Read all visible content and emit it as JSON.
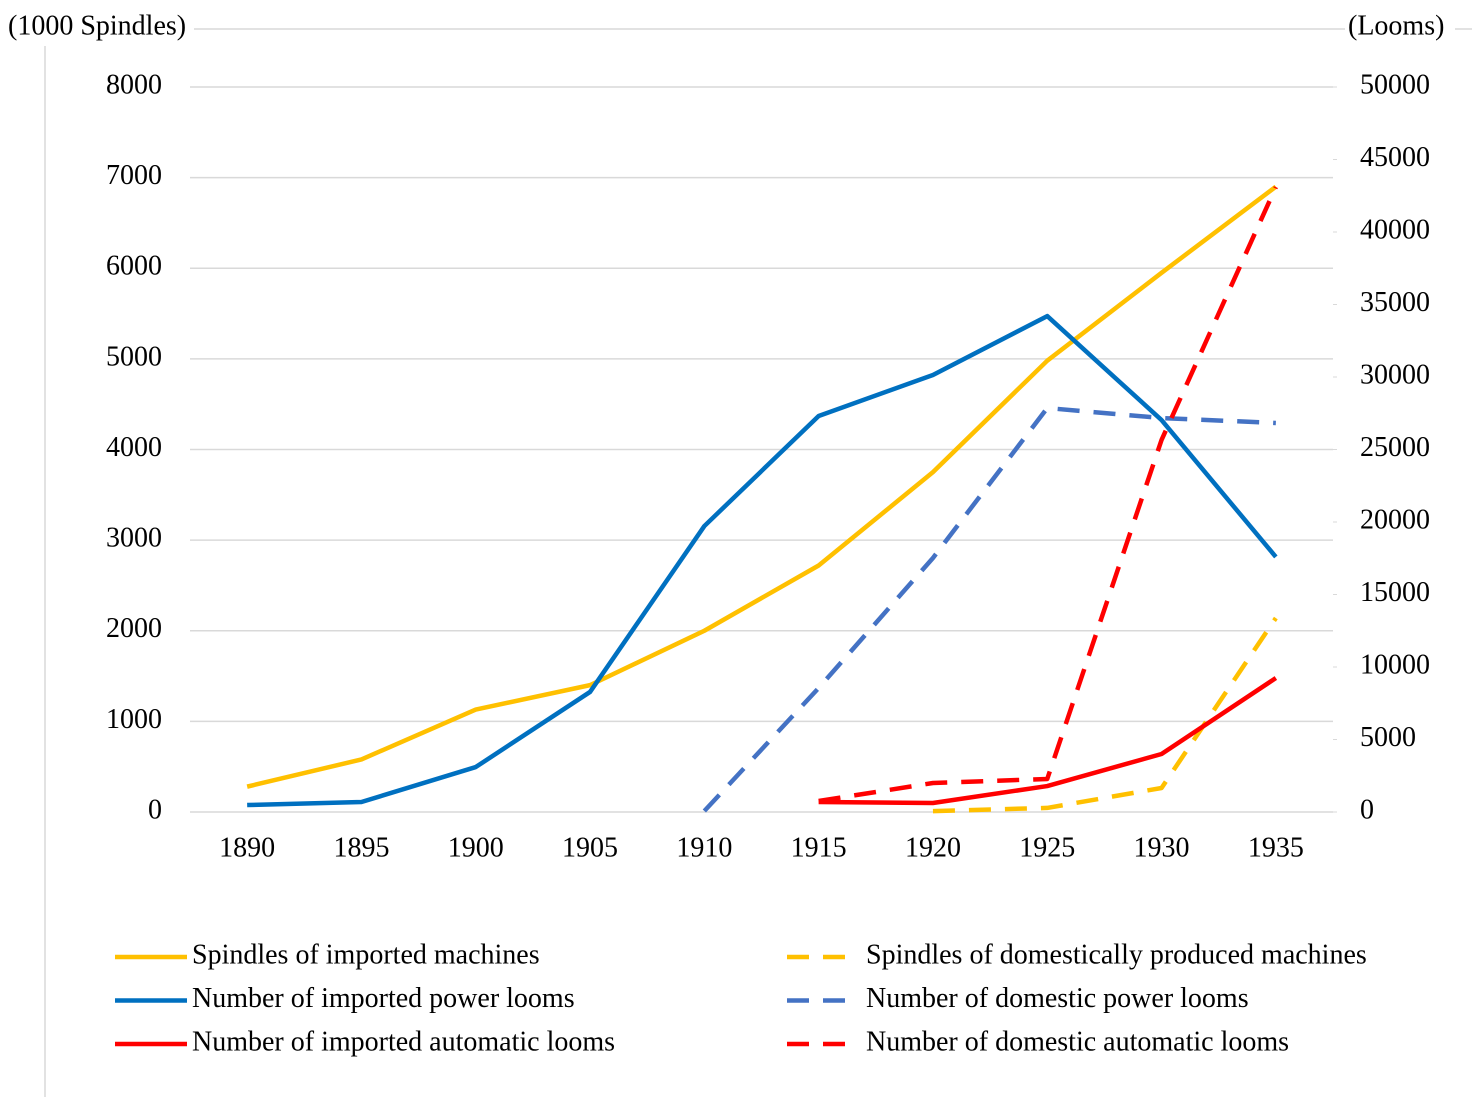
{
  "chart_data": {
    "type": "line",
    "y_label": "(1000 Spindles)",
    "y2_label": "(Looms)",
    "categories": [
      "1890",
      "1895",
      "1900",
      "1905",
      "1910",
      "1915",
      "1920",
      "1925",
      "1930",
      "1935"
    ],
    "ylim": [
      0,
      8000
    ],
    "yticks": [
      0,
      1000,
      2000,
      3000,
      4000,
      5000,
      6000,
      7000,
      8000
    ],
    "y2lim": [
      0,
      50000
    ],
    "y2ticks": [
      0,
      5000,
      10000,
      15000,
      20000,
      25000,
      30000,
      35000,
      40000,
      45000,
      50000
    ],
    "grid": true,
    "series": [
      {
        "name": "Spindles of imported machines",
        "color": "#FFC000",
        "dashed": false,
        "values": [
          280,
          580,
          1130,
          1400,
          2000,
          2720,
          3750,
          4980,
          5950,
          6900
        ]
      },
      {
        "name": "Spindles of domestically produced machines",
        "color": "#FFC000",
        "dashed": true,
        "values": [
          null,
          null,
          null,
          null,
          null,
          null,
          10,
          45,
          265,
          2140
        ]
      },
      {
        "name": "Number of imported power looms",
        "color": "#0070C0",
        "dashed": false,
        "axis": "y2",
        "values": [
          480,
          690,
          3100,
          8280,
          19720,
          27310,
          30140,
          34200,
          27030,
          17590
        ]
      },
      {
        "name": "Number of domestic power looms",
        "color": "#4472C4",
        "dashed": true,
        "axis": "y2",
        "values": [
          null,
          null,
          null,
          null,
          70,
          8550,
          17520,
          27860,
          27170,
          26830
        ]
      },
      {
        "name": "Number of imported automatic looms",
        "color": "#FF0000",
        "dashed": false,
        "axis": "y2",
        "values": [
          null,
          null,
          null,
          null,
          null,
          690,
          620,
          1790,
          4000,
          9240
        ]
      },
      {
        "name": "Number of domestic automatic looms",
        "color": "#FF0000",
        "dashed": true,
        "axis": "y2",
        "values": [
          null,
          null,
          null,
          null,
          null,
          760,
          2000,
          2280,
          25660,
          43100
        ]
      }
    ]
  }
}
